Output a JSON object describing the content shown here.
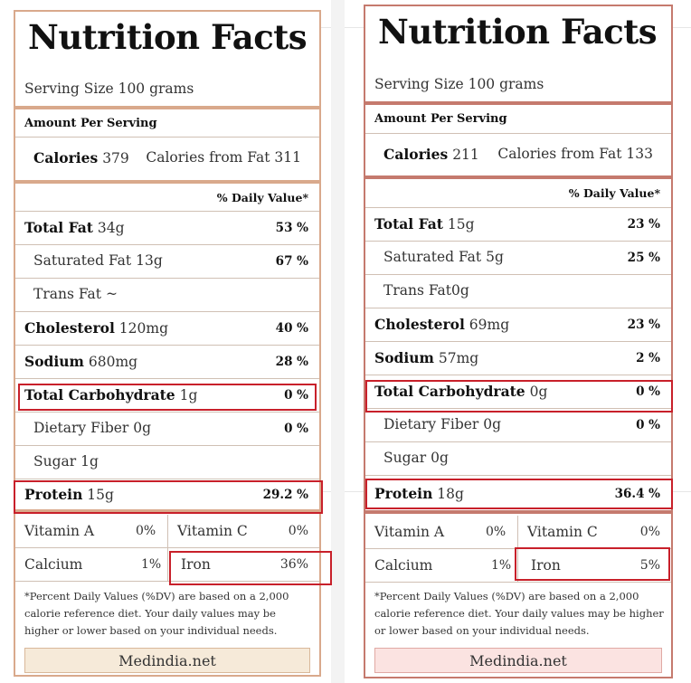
{
  "labels": {
    "title": "Nutrition Facts",
    "amount_per_serving": "Amount Per Serving",
    "calories": "Calories",
    "calories_from_fat": "Calories from Fat",
    "daily_value": "% Daily Value*",
    "total_fat": "Total Fat",
    "saturated_fat": "Saturated Fat",
    "trans_fat": "Trans Fat",
    "cholesterol": "Cholesterol",
    "sodium": "Sodium",
    "total_carb": "Total Carbohydrate",
    "dietary_fiber": "Dietary Fiber",
    "sugar": "Sugar",
    "protein": "Protein",
    "vitamin_a": "Vitamin A",
    "vitamin_c": "Vitamin C",
    "calcium": "Calcium",
    "iron": "Iron",
    "footnote": "*Percent Daily Values (%DV) are based on a 2,000 calorie reference diet. Your daily values may be higher or lower based on your individual needs.",
    "source": "Medindia.net"
  },
  "left": {
    "serving_size": "Serving Size 100 grams",
    "calories": "379",
    "calories_from_fat": "311",
    "total_fat": "34g",
    "total_fat_dv": "53 %",
    "saturated_fat": "13g",
    "saturated_fat_dv": "67 %",
    "trans_fat": "~",
    "cholesterol": "120mg",
    "cholesterol_dv": "40 %",
    "sodium": "680mg",
    "sodium_dv": "28 %",
    "total_carb": "1g",
    "total_carb_dv": "0 %",
    "dietary_fiber": "0g",
    "dietary_fiber_dv": "0 %",
    "sugar": "1g",
    "protein": "15g",
    "protein_dv": "29.2 %",
    "vitamin_a_dv": "0%",
    "vitamin_c_dv": "0%",
    "calcium_dv": "1%",
    "iron_dv": "36%",
    "border_color": "#d9a98c",
    "footer_bg": "#f6ead9"
  },
  "right": {
    "serving_size": "Serving Size 100 grams",
    "calories": "211",
    "calories_from_fat": "133",
    "total_fat": "15g",
    "total_fat_dv": "23 %",
    "saturated_fat": "5g",
    "saturated_fat_dv": "25 %",
    "trans_fat": "0g",
    "cholesterol": "69mg",
    "cholesterol_dv": "23 %",
    "sodium": "57mg",
    "sodium_dv": "2 %",
    "total_carb": "0g",
    "total_carb_dv": "0 %",
    "dietary_fiber": "0g",
    "dietary_fiber_dv": "0 %",
    "sugar": "0g",
    "protein": "18g",
    "protein_dv": "36.4 %",
    "vitamin_a_dv": "0%",
    "vitamin_c_dv": "0%",
    "calcium_dv": "1%",
    "iron_dv": "5%",
    "border_color": "#c57a6e",
    "footer_bg": "#fbe3e1"
  },
  "highlight_color": "#c8202a"
}
